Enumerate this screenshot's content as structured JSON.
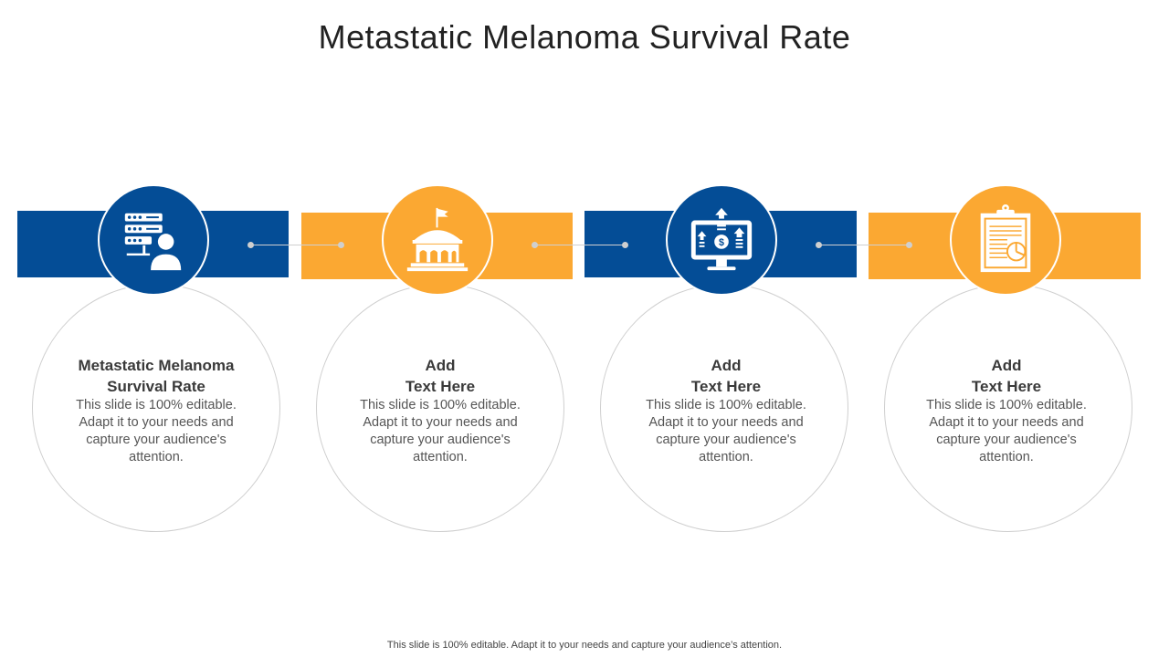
{
  "title": "Metastatic Melanoma Survival Rate",
  "colors": {
    "blue": "#044D96",
    "orange": "#FBA832"
  },
  "steps": [
    {
      "heading_line1": "Metastatic Melanoma",
      "heading_line2": "Survival Rate",
      "description": "This slide is 100% editable. Adapt it to your needs and capture your audience's attention.",
      "icon": "person-server-icon",
      "color": "blue"
    },
    {
      "heading_line1": "Add",
      "heading_line2": "Text Here",
      "description": "This slide is 100% editable. Adapt it to your needs and capture your audience's attention.",
      "icon": "institution-flag-icon",
      "color": "orange"
    },
    {
      "heading_line1": "Add",
      "heading_line2": "Text Here",
      "description": "This slide is 100% editable. Adapt it to your needs and capture your audience's attention.",
      "icon": "monitor-dollar-growth-icon",
      "color": "blue"
    },
    {
      "heading_line1": "Add",
      "heading_line2": "Text Here",
      "description": "This slide is 100% editable. Adapt it to your needs and capture your audience's attention.",
      "icon": "clipboard-report-icon",
      "color": "orange"
    }
  ],
  "footer": "This slide is 100% editable. Adapt it to your needs and capture your audience’s attention."
}
